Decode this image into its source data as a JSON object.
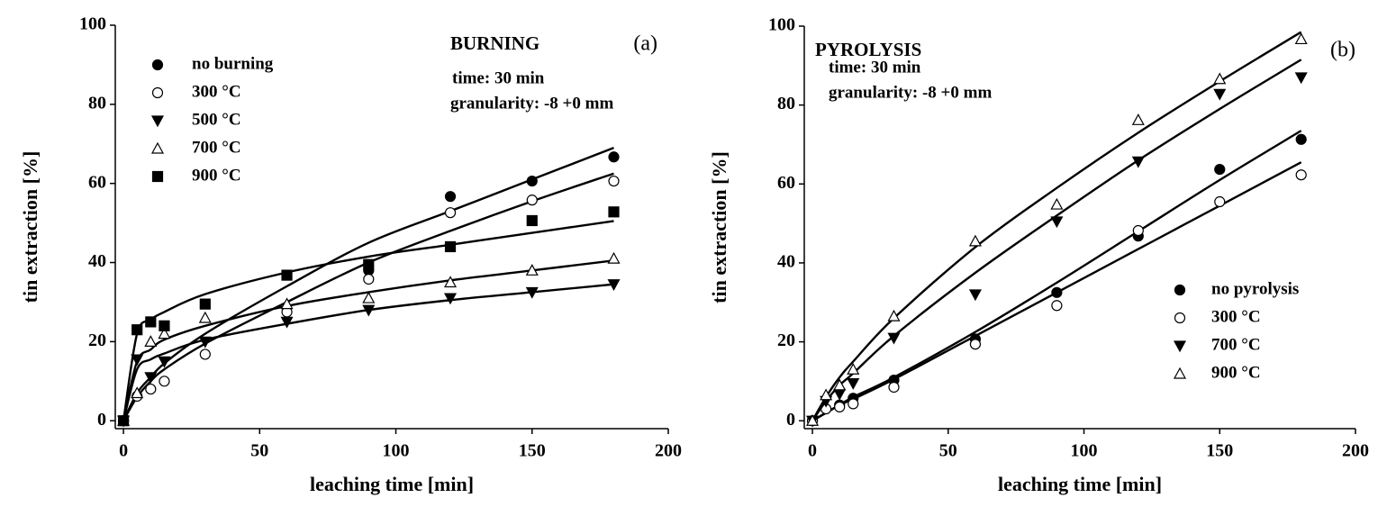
{
  "chart_data": [
    {
      "type": "scatter",
      "annotations": [
        "BURNING",
        "(a)",
        "time: 30 min",
        "granularity: -8 +0 mm"
      ],
      "xlabel": "leaching time [min]",
      "ylabel": "tin extraction [%]",
      "legend": "upper left",
      "x": [
        0,
        5,
        10,
        15,
        30,
        60,
        90,
        120,
        150,
        180
      ],
      "xlim": [
        -3,
        200
      ],
      "xticks": [
        0,
        50,
        100,
        150,
        200
      ],
      "ylim": [
        -2,
        100
      ],
      "yticks": [
        0,
        20,
        40,
        60,
        80,
        100
      ],
      "series": [
        {
          "name": "no burning",
          "color": "#000000",
          "marker": "circle-filled",
          "values": [
            0,
            null,
            null,
            null,
            null,
            null,
            38,
            56.7,
            60.6,
            66.7
          ],
          "fit_values": [
            0,
            7,
            11,
            14.5,
            22,
            34,
            45,
            53,
            61,
            69
          ]
        },
        {
          "name": "300 °C",
          "color": "#000000",
          "marker": "circle-open",
          "values": [
            0,
            6.2,
            8,
            10,
            16.8,
            27.5,
            35.8,
            52.6,
            55.8,
            60.6
          ],
          "fit_values": [
            0,
            6,
            10,
            13,
            19.5,
            30,
            40,
            48,
            55.5,
            62.5
          ]
        },
        {
          "name": "500 °C",
          "color": "#000000",
          "marker": "tri-down-filled",
          "values": [
            0,
            15.5,
            11,
            15,
            20,
            25,
            28,
            31,
            32.5,
            34.5
          ],
          "fit_values": [
            0,
            13,
            15.5,
            17,
            20.5,
            24.5,
            28,
            30.5,
            32.5,
            34.5
          ]
        },
        {
          "name": "700 °C",
          "color": "#000000",
          "marker": "tri-up-open",
          "values": [
            0,
            7,
            20,
            22,
            26,
            29.5,
            31,
            35,
            38,
            41
          ],
          "fit_values": [
            0,
            15,
            18,
            20.5,
            24,
            29,
            32.5,
            35.5,
            38,
            40.5
          ]
        },
        {
          "name": "900 °C",
          "color": "#000000",
          "marker": "square-filled",
          "values": [
            0,
            23,
            25,
            24,
            29.5,
            36.8,
            39.5,
            44,
            50.6,
            52.8
          ],
          "fit_values": [
            0,
            22,
            25.5,
            27.5,
            32,
            37.5,
            41.5,
            44.5,
            47.5,
            50.5
          ]
        }
      ]
    },
    {
      "type": "scatter",
      "annotations": [
        "PYROLYSIS",
        "(b)",
        "time: 30 min",
        "granularity: -8 +0 mm"
      ],
      "xlabel": "leaching time [min]",
      "ylabel": "tin extraction [%]",
      "legend": "lower right",
      "x": [
        0,
        5,
        10,
        15,
        30,
        60,
        90,
        120,
        150,
        180
      ],
      "xlim": [
        -3,
        200
      ],
      "xticks": [
        0,
        50,
        100,
        150,
        200
      ],
      "ylim": [
        -2,
        100
      ],
      "yticks": [
        0,
        20,
        40,
        60,
        80,
        100
      ],
      "series": [
        {
          "name": "no pyrolysis",
          "color": "#000000",
          "marker": "circle-filled",
          "values": [
            0,
            null,
            4,
            5.7,
            10.3,
            20.7,
            32.5,
            46.8,
            63.7,
            71.3
          ],
          "fit_values": [
            0,
            2,
            4,
            6,
            11,
            22.5,
            35,
            48,
            61,
            73.5
          ]
        },
        {
          "name": "300 °C",
          "color": "#000000",
          "marker": "circle-open",
          "values": [
            0,
            3,
            3.5,
            4.3,
            8.5,
            19.4,
            29.2,
            48.2,
            55.5,
            62.3
          ],
          "fit_values": [
            0,
            2,
            4,
            5.5,
            10.5,
            21.5,
            32.5,
            43.5,
            54.5,
            65.5
          ]
        },
        {
          "name": "700 °C",
          "color": "#000000",
          "marker": "tri-down-filled",
          "values": [
            0,
            5,
            6.8,
            9.5,
            21,
            32,
            50.5,
            65.7,
            82.8,
            87
          ],
          "fit_values": [
            0,
            5,
            9,
            12,
            21.5,
            37.5,
            52,
            66,
            79,
            91.5
          ]
        },
        {
          "name": "900 °C",
          "color": "#000000",
          "marker": "tri-up-open",
          "values": [
            0,
            6.5,
            9,
            13,
            26.5,
            45.5,
            54.8,
            76.2,
            86.6,
            96.7
          ],
          "fit_values": [
            0,
            6,
            11,
            15,
            26,
            44,
            59,
            73,
            86,
            98.5
          ]
        }
      ]
    }
  ]
}
